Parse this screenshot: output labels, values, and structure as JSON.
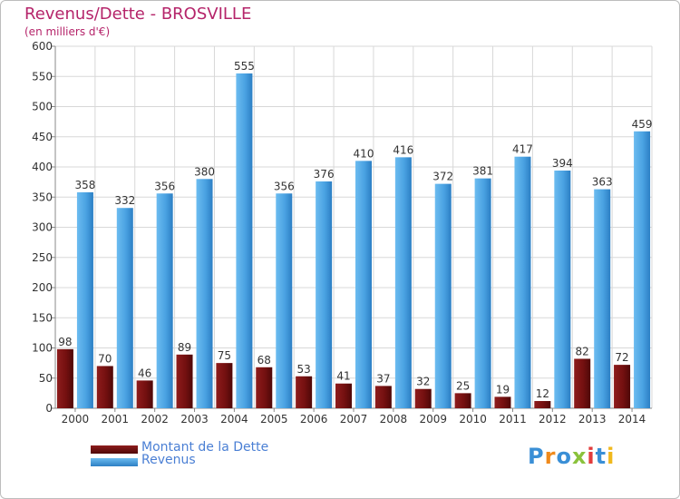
{
  "chart_data": {
    "type": "bar",
    "title": "Revenus/Dette - BROSVILLE",
    "subtitle": "(en milliers d'€)",
    "categories": [
      "2000",
      "2001",
      "2002",
      "2003",
      "2004",
      "2005",
      "2006",
      "2007",
      "2008",
      "2009",
      "2010",
      "2011",
      "2012",
      "2013",
      "2014"
    ],
    "series": [
      {
        "name": "Montant de la Dette",
        "color": "#7a1010",
        "values": [
          98,
          70,
          46,
          89,
          75,
          68,
          53,
          41,
          37,
          32,
          25,
          19,
          12,
          82,
          72
        ]
      },
      {
        "name": "Revenus",
        "color": "#4da3e0",
        "values": [
          358,
          332,
          356,
          380,
          555,
          356,
          376,
          410,
          416,
          372,
          381,
          417,
          394,
          363,
          459
        ]
      }
    ],
    "ylim": [
      0,
      600
    ],
    "yticks": [
      0,
      50,
      100,
      150,
      200,
      250,
      300,
      350,
      400,
      450,
      500,
      550,
      600
    ],
    "grid": true,
    "legend_position": "bottom-left"
  },
  "logo": {
    "text": "Proxiti",
    "letters": [
      "P",
      "r",
      "o",
      "x",
      "i",
      "t",
      "i"
    ],
    "colors": [
      "#3a8fd6",
      "#f08a1c",
      "#3a8fd6",
      "#8ac23c",
      "#e23c3c",
      "#3a8fd6",
      "#f0b81c"
    ]
  }
}
